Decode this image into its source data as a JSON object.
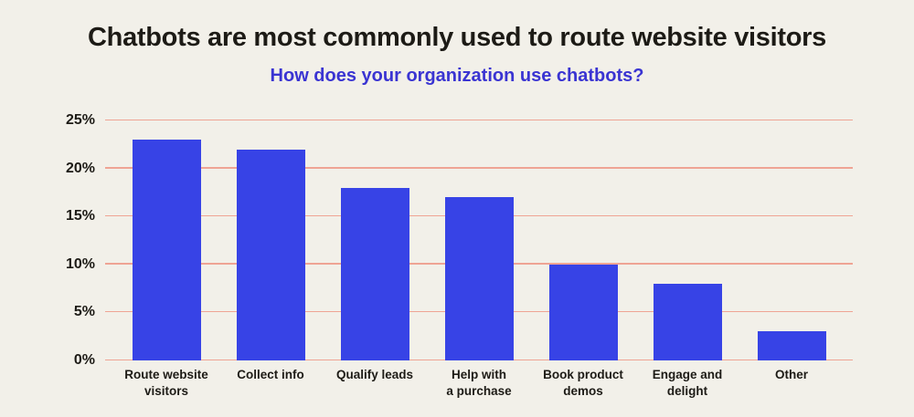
{
  "title": "Chatbots are most commonly used to route website visitors",
  "subtitle": "How does your organization use chatbots?",
  "colors": {
    "background": "#f2f0e9",
    "bar": "#3743e6",
    "gridline": "#efa494",
    "title_text": "#1d1b16",
    "subtitle_text": "#3a34d2"
  },
  "chart_data": {
    "type": "bar",
    "title": "Chatbots are most commonly used to route website visitors",
    "subtitle": "How does your organization use chatbots?",
    "categories": [
      "Route website\nvisitors",
      "Collect info",
      "Qualify leads",
      "Help with\na purchase",
      "Book product\ndemos",
      "Engage and\ndelight",
      "Other"
    ],
    "values": [
      23,
      22,
      18,
      17,
      10,
      8,
      3
    ],
    "xlabel": "",
    "ylabel": "",
    "ylim": [
      0,
      25
    ],
    "yticks": [
      {
        "label": "0%",
        "value": 0
      },
      {
        "label": "5%",
        "value": 5
      },
      {
        "label": "10%",
        "value": 10
      },
      {
        "label": "15%",
        "value": 15
      },
      {
        "label": "20%",
        "value": 20
      },
      {
        "label": "25%",
        "value": 25
      }
    ],
    "grid": true,
    "legend": false
  }
}
